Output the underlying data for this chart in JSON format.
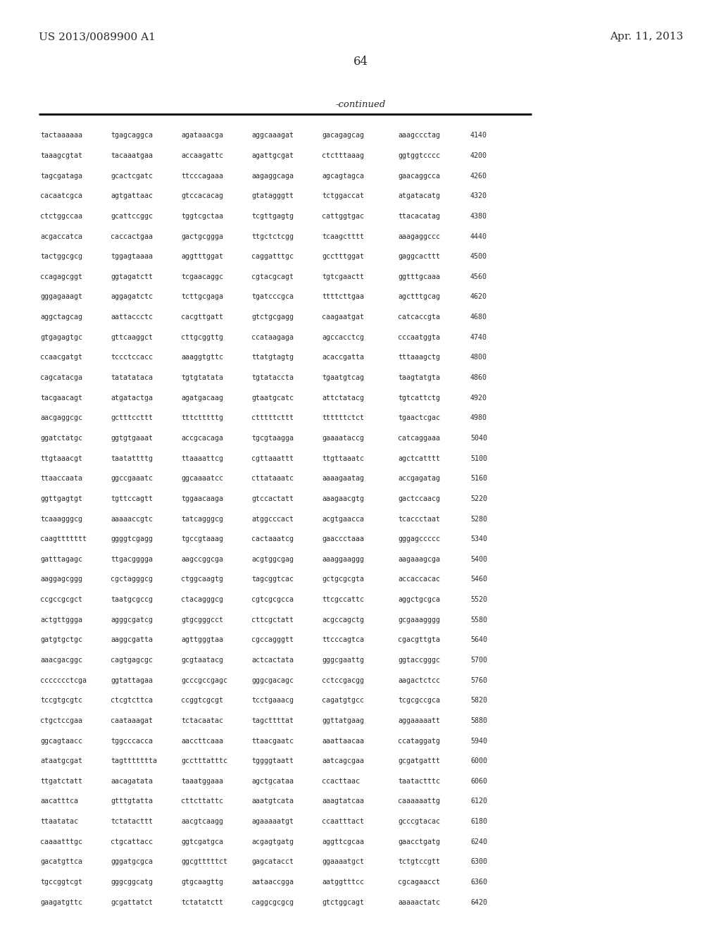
{
  "header_left": "US 2013/0089900 A1",
  "header_right": "Apr. 11, 2013",
  "page_number": "64",
  "continued_label": "-continued",
  "background_color": "#ffffff",
  "text_color": "#2a2a2a",
  "sequence_data": [
    [
      "tactaaaaaa",
      "tgagcaggca",
      "agataaacga",
      "aggcaaagat",
      "gacagagcag",
      "aaagccctag",
      "4140"
    ],
    [
      "taaagcgtat",
      "tacaaatgaa",
      "accaagattc",
      "agattgcgat",
      "ctctttaaag",
      "ggtggtcccc",
      "4200"
    ],
    [
      "tagcgataga",
      "gcactcgatc",
      "ttcccagaaa",
      "aagaggcaga",
      "agcagtagca",
      "gaacaggcca",
      "4260"
    ],
    [
      "cacaatcgca",
      "agtgattaac",
      "gtccacacag",
      "gtatagggtt",
      "tctggaccat",
      "atgatacatg",
      "4320"
    ],
    [
      "ctctggccaa",
      "gcattccggc",
      "tggtcgctaa",
      "tcgttgagtg",
      "cattggtgac",
      "ttacacatag",
      "4380"
    ],
    [
      "acgaccatca",
      "caccactgaa",
      "gactgcggga",
      "ttgctctcgg",
      "tcaagctttt",
      "aaagaggccc",
      "4440"
    ],
    [
      "tactggcgcg",
      "tggagtaaaa",
      "aggtttggat",
      "caggatttgc",
      "gcctttggat",
      "gaggcacttt",
      "4500"
    ],
    [
      "ccagagcggt",
      "ggtagatctt",
      "tcgaacaggc",
      "cgtacgcagt",
      "tgtcgaactt",
      "ggtttgcaaa",
      "4560"
    ],
    [
      "gggagaaagt",
      "aggagatctc",
      "tcttgcgaga",
      "tgatcccgca",
      "ttttcttgaa",
      "agctttgcag",
      "4620"
    ],
    [
      "aggctagcag",
      "aattaccctc",
      "cacgttgatt",
      "gtctgcgagg",
      "caagaatgat",
      "catcaccgta",
      "4680"
    ],
    [
      "gtgagagtgc",
      "gttcaaggct",
      "cttgcggttg",
      "ccataagaga",
      "agccacctcg",
      "cccaatggta",
      "4740"
    ],
    [
      "ccaacgatgt",
      "tccctccacc",
      "aaaggtgttc",
      "ttatgtagtg",
      "acaccgatta",
      "tttaaagctg",
      "4800"
    ],
    [
      "cagcatacga",
      "tatatataca",
      "tgtgtatata",
      "tgtataccta",
      "tgaatgtcag",
      "taagtatgta",
      "4860"
    ],
    [
      "tacgaacagt",
      "atgatactga",
      "agatgacaag",
      "gtaatgcatc",
      "attctatacg",
      "tgtcattctg",
      "4920"
    ],
    [
      "aacgaggcgc",
      "gctttccttt",
      "tttctttttg",
      "ctttttcttt",
      "ttttttctct",
      "tgaactcgac",
      "4980"
    ],
    [
      "ggatctatgc",
      "ggtgtgaaat",
      "accgcacaga",
      "tgcgtaagga",
      "gaaaataccg",
      "catcaggaaa",
      "5040"
    ],
    [
      "ttgtaaacgt",
      "taatattttg",
      "ttaaaattcg",
      "cgttaaattt",
      "ttgttaaatc",
      "agctcatttt",
      "5100"
    ],
    [
      "ttaaccaata",
      "ggccgaaatc",
      "ggcaaaatcc",
      "cttataaatc",
      "aaaagaatag",
      "accgagatag",
      "5160"
    ],
    [
      "ggttgagtgt",
      "tgttccagtt",
      "tggaacaaga",
      "gtccactatt",
      "aaagaacgtg",
      "gactccaacg",
      "5220"
    ],
    [
      "tcaaagggcg",
      "aaaaaccgtc",
      "tatcagggcg",
      "atggcccact",
      "acgtgaacca",
      "tcaccctaat",
      "5280"
    ],
    [
      "caagttttttt",
      "ggggtcgagg",
      "tgccgtaaag",
      "cactaaatcg",
      "gaaccctaaa",
      "gggagccccc",
      "5340"
    ],
    [
      "gatttagagc",
      "ttgacgggga",
      "aagccggcga",
      "acgtggcgag",
      "aaaggaaggg",
      "aagaaagcga",
      "5400"
    ],
    [
      "aaggagcggg",
      "cgctagggcg",
      "ctggcaagtg",
      "tagcggtcac",
      "gctgcgcgta",
      "accaccacac",
      "5460"
    ],
    [
      "ccgccgcgct",
      "taatgcgccg",
      "ctacagggcg",
      "cgtcgcgcca",
      "ttcgccattc",
      "aggctgcgca",
      "5520"
    ],
    [
      "actgttggga",
      "agggcgatcg",
      "gtgcgggcct",
      "cttcgctatt",
      "acgccagctg",
      "gcgaaagggg",
      "5580"
    ],
    [
      "gatgtgctgc",
      "aaggcgatta",
      "agttgggtaa",
      "cgccagggtt",
      "ttcccagtca",
      "cgacgttgta",
      "5640"
    ],
    [
      "aaacgacggc",
      "cagtgagcgc",
      "gcgtaatacg",
      "actcactata",
      "gggcgaattg",
      "ggtaccgggc",
      "5700"
    ],
    [
      "ccccccctcga",
      "ggtattagaa",
      "gcccgccgagc",
      "gggcgacagc",
      "cctccgacgg",
      "aagactctcc",
      "5760"
    ],
    [
      "tccgtgcgtc",
      "ctcgtcttca",
      "ccggtcgcgt",
      "tcctgaaacg",
      "cagatgtgcc",
      "tcgcgccgca",
      "5820"
    ],
    [
      "ctgctccgaa",
      "caataaagat",
      "tctacaatac",
      "tagcttttat",
      "ggttatgaag",
      "aggaaaaatt",
      "5880"
    ],
    [
      "ggcagtaacc",
      "tggcccacca",
      "aaccttcaaa",
      "ttaacgaatc",
      "aaattaacaa",
      "ccataggatg",
      "5940"
    ],
    [
      "ataatgcgat",
      "tagttttttta",
      "gcctttatttc",
      "tggggtaatt",
      "aatcagcgaa",
      "gcgatgattt",
      "6000"
    ],
    [
      "ttgatctatt",
      "aacagatata",
      "taaatggaaa",
      "agctgcataa",
      "ccacttaac",
      "taatactttc",
      "6060"
    ],
    [
      "aacatttca",
      "gtttgtatta",
      "cttcttattc",
      "aaatgtcata",
      "aaagtatcaa",
      "caaaaaattg",
      "6120"
    ],
    [
      "ttaatatac",
      "tctatacttt",
      "aacgtcaagg",
      "agaaaaatgt",
      "ccaatttact",
      "gcccgtacac",
      "6180"
    ],
    [
      "caaaatttgc",
      "ctgcattacc",
      "ggtcgatgca",
      "acgagtgatg",
      "aggttcgcaa",
      "gaacctgatg",
      "6240"
    ],
    [
      "gacatgttca",
      "gggatgcgca",
      "ggcgtttttct",
      "gagcatacct",
      "ggaaaatgct",
      "tctgtccgtt",
      "6300"
    ],
    [
      "tgccggtcgt",
      "gggcggcatg",
      "gtgcaagttg",
      "aataaccgga",
      "aatggtttcc",
      "cgcagaacct",
      "6360"
    ],
    [
      "gaagatgttc",
      "gcgattatct",
      "tctatatctt",
      "caggcgcgcg",
      "gtctggcagt",
      "aaaaactatc",
      "6420"
    ]
  ]
}
